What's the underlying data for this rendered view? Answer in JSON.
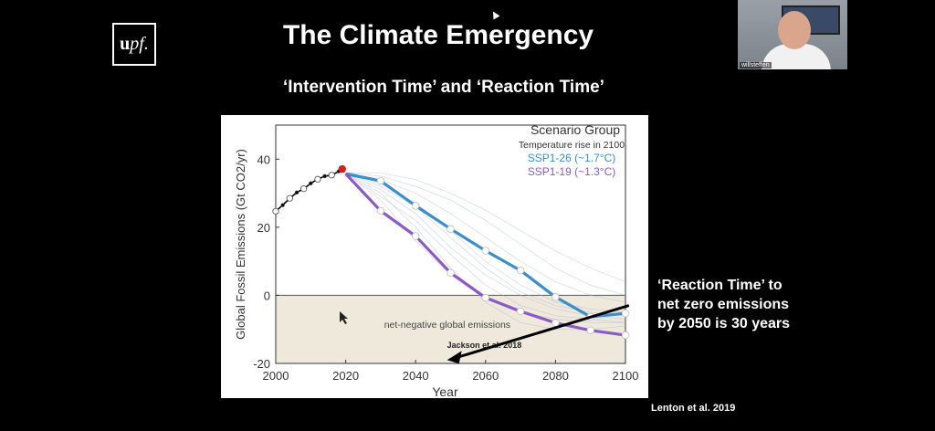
{
  "logo": {
    "text_bold": "u",
    "text_italic": "pf."
  },
  "slide": {
    "title": "The Climate Emergency",
    "subtitle": "‘Intervention Time’ and ‘Reaction Time’",
    "annotation": [
      "‘Reaction Time’ to",
      "net zero emissions",
      "by 2050 is 30 years"
    ],
    "credit": "Lenton et al. 2019"
  },
  "video": {
    "participant_name": "willsteffen"
  },
  "chart_data": {
    "type": "line",
    "xlabel": "Year",
    "ylabel": "Global Fossil Emissions (Gt CO2/yr)",
    "xlim": [
      2000,
      2100
    ],
    "ylim": [
      -20,
      50
    ],
    "xticks": [
      2000,
      2020,
      2040,
      2060,
      2080,
      2100
    ],
    "yticks": [
      -20,
      0,
      20,
      40
    ],
    "legend": {
      "title": "Scenario Group",
      "subtitle": "Temperature rise in 2100",
      "placement": "top-right"
    },
    "negative_region_label": "net-negative global emissions",
    "inset_credit": "Jackson et al. 2018",
    "colors": {
      "historical": "#000000",
      "ssp126": "#3a8fc8",
      "ssp119": "#8a5bc4",
      "current": "#d42020",
      "shade": "#efe9dc"
    },
    "historical": {
      "x": [
        2000,
        2002,
        2004,
        2006,
        2008,
        2010,
        2012,
        2014,
        2016,
        2018
      ],
      "y": [
        24.7,
        26.5,
        28.5,
        30.2,
        31.3,
        32.9,
        34.1,
        35.0,
        35.3,
        36.4
      ]
    },
    "current_point": {
      "x": 2019,
      "y": 37.1
    },
    "series": [
      {
        "name": "SSP1-26 (~1.7°C)",
        "color": "#3a8fc8",
        "x": [
          2020,
          2030,
          2040,
          2050,
          2060,
          2070,
          2080,
          2090,
          2100
        ],
        "y": [
          35.7,
          33.6,
          26.3,
          19.5,
          13.1,
          7.3,
          -0.5,
          -6.3,
          -5.3
        ]
      },
      {
        "name": "SSP1-19 (~1.3°C)",
        "color": "#8a5bc4",
        "x": [
          2020,
          2030,
          2040,
          2050,
          2060,
          2070,
          2080,
          2090,
          2100
        ],
        "y": [
          35.7,
          24.8,
          17.4,
          6.6,
          -0.7,
          -4.7,
          -8.1,
          -10.3,
          -11.7
        ]
      }
    ],
    "arrow": {
      "from": [
        2101,
        -3
      ],
      "to": [
        2049,
        -19
      ]
    }
  }
}
